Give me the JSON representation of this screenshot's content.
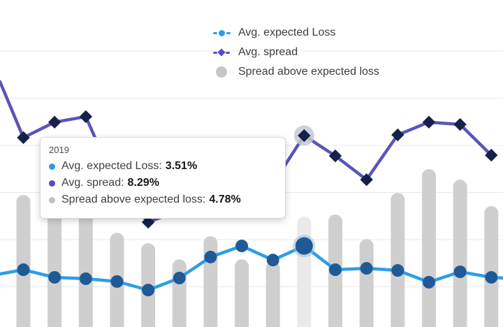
{
  "colors": {
    "expected_loss_line": "#2e9ce8",
    "expected_loss_marker": "#1f5a96",
    "spread_line": "#5a55b8",
    "spread_marker": "#152148",
    "spread_legend": "#544bc9",
    "bar": "#cfcfcf",
    "bar_highlight": "#eaeaea",
    "legend_gray": "#c6c6c6",
    "gridline": "#e9e9e9",
    "halo_diamond": "#c6c9d3",
    "halo_circle": "#9bbcdc"
  },
  "legend": {
    "items": [
      {
        "label": "Avg. expected Loss",
        "marker": "circle-dash"
      },
      {
        "label": "Avg. spread",
        "marker": "diamond-dash"
      },
      {
        "label": "Spread above expected loss",
        "marker": "circle"
      }
    ]
  },
  "tooltip": {
    "title": "2019",
    "rows": [
      {
        "label": "Avg. expected Loss:",
        "value": "3.51%"
      },
      {
        "label": "Avg. spread:",
        "value": "8.29%"
      },
      {
        "label": "Spread above expected loss:",
        "value": "4.78%"
      }
    ]
  },
  "chart_data": {
    "type": "combo-bar-line",
    "title": "",
    "x_labels": [
      null,
      null,
      null,
      null,
      null,
      null,
      null,
      null,
      null,
      "2019",
      null,
      null,
      null,
      null,
      null,
      null
    ],
    "highlighted_index": 9,
    "y_unit": "%",
    "ylim": [
      0,
      14.2
    ],
    "y_axis_labels_visible": false,
    "x_axis_labels_visible": false,
    "grid": true,
    "legend_position": "top-center",
    "note": "Axis labels are cropped out of the screenshot; only the tooltip year 2019 is visible. Values hidden behind the tooltip are estimates.",
    "series": [
      {
        "id": "loss",
        "name": "Avg. expected Loss",
        "type": "line",
        "marker": "circle",
        "values": [
          2.48,
          2.15,
          2.09,
          1.97,
          1.6,
          2.12,
          3.03,
          3.51,
          2.9,
          3.51,
          2.48,
          2.54,
          2.45,
          1.94,
          2.39,
          2.15
        ]
      },
      {
        "id": "spread",
        "name": "Avg. spread",
        "type": "line",
        "marker": "diamond",
        "values": [
          8.2,
          8.87,
          9.11,
          6.05,
          4.54,
          5.05,
          6.96,
          6.44,
          6.2,
          8.29,
          7.41,
          6.38,
          8.32,
          8.87,
          8.77,
          7.44
        ]
      },
      {
        "id": "above",
        "name": "Spread above expected loss",
        "type": "bar",
        "values": [
          5.72,
          6.72,
          7.02,
          4.08,
          3.63,
          2.93,
          3.93,
          2.93,
          2.84,
          4.78,
          4.87,
          3.81,
          5.81,
          6.84,
          6.38,
          5.23
        ]
      }
    ],
    "edges": {
      "left_spread": 10.62,
      "left_loss": 2.3,
      "right_loss": 2.12
    }
  }
}
